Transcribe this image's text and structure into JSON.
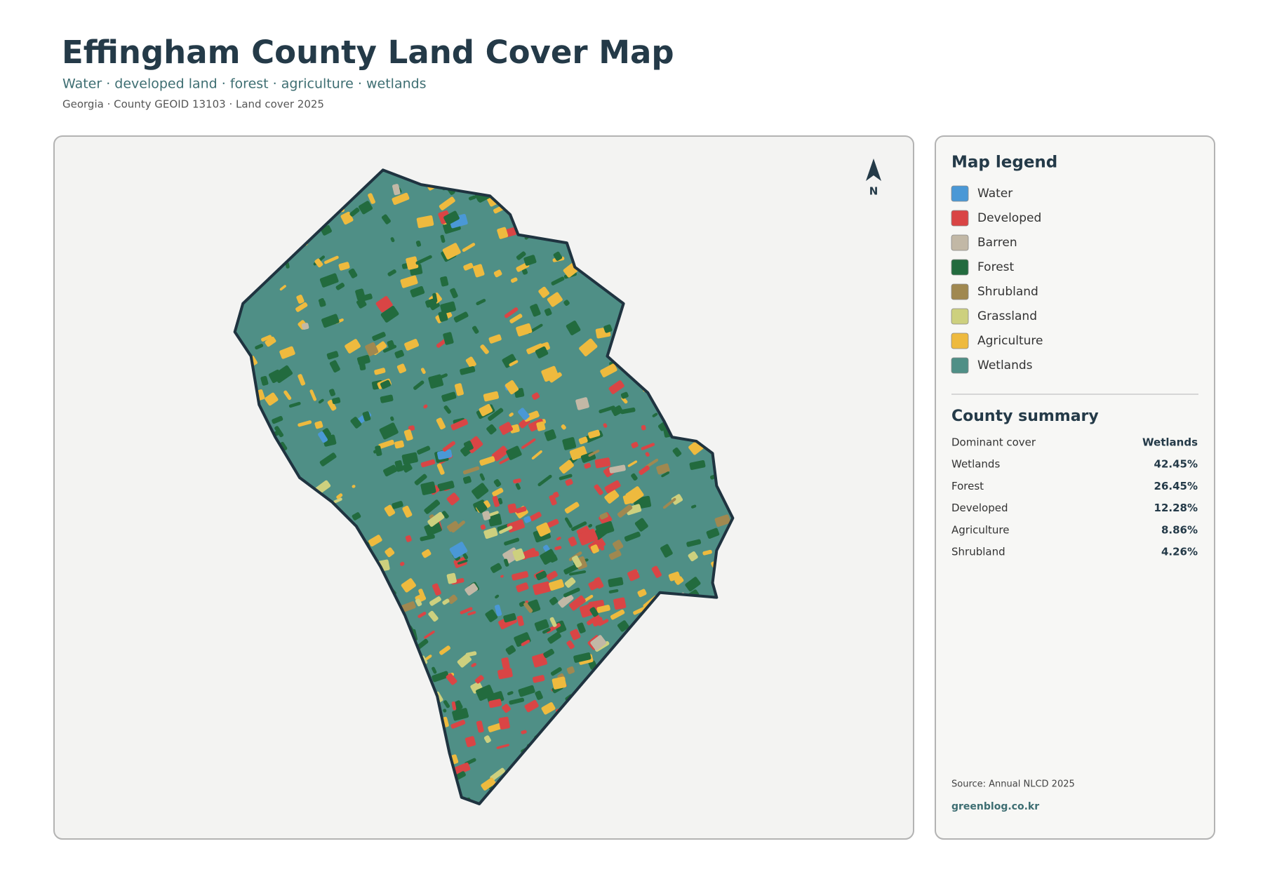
{
  "header": {
    "title": "Effingham County Land Cover Map",
    "subtitle": "Water · developed land · forest · agriculture · wetlands",
    "meta": "Georgia · County GEOID 13103 · Land cover 2025"
  },
  "map": {
    "north": "N"
  },
  "legend": {
    "title": "Map legend",
    "items": [
      {
        "label": "Water",
        "color": "#4a98d6"
      },
      {
        "label": "Developed",
        "color": "#d94545"
      },
      {
        "label": "Barren",
        "color": "#c2b8a6"
      },
      {
        "label": "Forest",
        "color": "#226b3e"
      },
      {
        "label": "Shrubland",
        "color": "#a08850"
      },
      {
        "label": "Grassland",
        "color": "#cdd07e"
      },
      {
        "label": "Agriculture",
        "color": "#eeba3e"
      },
      {
        "label": "Wetlands",
        "color": "#4f8f86"
      }
    ]
  },
  "summary": {
    "title": "County summary",
    "rows": [
      [
        "Dominant cover",
        "Wetlands"
      ],
      [
        "Wetlands",
        "42.45%"
      ],
      [
        "Forest",
        "26.45%"
      ],
      [
        "Developed",
        "12.28%"
      ],
      [
        "Agriculture",
        "8.86%"
      ],
      [
        "Shrubland",
        "4.26%"
      ]
    ]
  },
  "footer": {
    "source": "Source: Annual NLCD 2025",
    "credit": "greenblog.co.kr"
  }
}
